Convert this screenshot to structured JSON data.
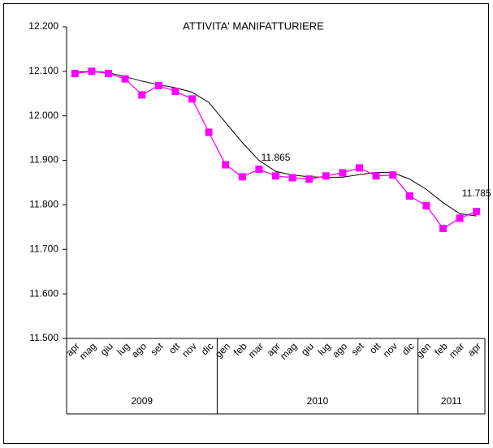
{
  "chart_data": {
    "type": "line",
    "title": "ATTIVITA' MANIFATTURIERE",
    "categories": [
      "apr",
      "mag",
      "giu",
      "lug",
      "ago",
      "set",
      "ott",
      "nov",
      "dic",
      "gen",
      "feb",
      "mar",
      "apr",
      "mag",
      "giu",
      "lug",
      "ago",
      "set",
      "ott",
      "nov",
      "dic",
      "gen",
      "feb",
      "mar",
      "apr"
    ],
    "groups": [
      {
        "label": "2009",
        "size": 9
      },
      {
        "label": "2010",
        "size": 12
      },
      {
        "label": "2011",
        "size": 4
      }
    ],
    "series": [
      {
        "color": "#ff00ff",
        "marker": "square",
        "values": [
          12095,
          12100,
          12095,
          12083,
          12047,
          12068,
          12055,
          12038,
          11963,
          11890,
          11863,
          11880,
          11865,
          11861,
          11858,
          11865,
          11872,
          11883,
          11865,
          11867,
          11820,
          11798,
          11747,
          11770,
          11785
        ],
        "value_labels": [
          null,
          null,
          null,
          null,
          null,
          null,
          null,
          null,
          null,
          null,
          null,
          null,
          "11.865",
          null,
          null,
          null,
          null,
          null,
          null,
          null,
          null,
          null,
          null,
          null,
          "11.785"
        ]
      },
      {
        "color": "#000000",
        "marker": "none",
        "values": [
          12098,
          12100,
          12097,
          12088,
          12078,
          12070,
          12063,
          12053,
          12030,
          11985,
          11940,
          11900,
          11875,
          11867,
          11863,
          11862,
          11862,
          11868,
          11873,
          11872,
          11858,
          11835,
          11805,
          11780,
          11775
        ]
      }
    ],
    "ylim": [
      11500,
      12200
    ],
    "yticks": [
      {
        "value": 11500,
        "label": "11.500"
      },
      {
        "value": 11600,
        "label": "11.600"
      },
      {
        "value": 11700,
        "label": "11.700"
      },
      {
        "value": 11800,
        "label": "11.800"
      },
      {
        "value": 11900,
        "label": "11.900"
      },
      {
        "value": 12000,
        "label": "12.000"
      },
      {
        "value": 12100,
        "label": "12.100"
      },
      {
        "value": 12200,
        "label": "12.200"
      }
    ],
    "grid": false
  }
}
